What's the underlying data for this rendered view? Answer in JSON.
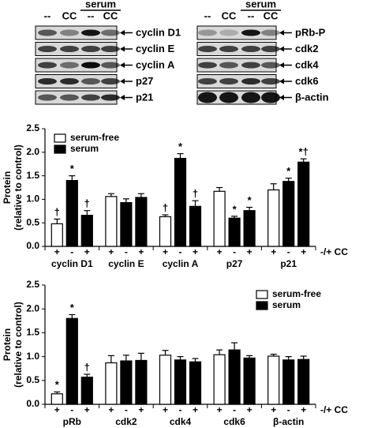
{
  "blots": {
    "left": {
      "lanes": [
        "--",
        "CC",
        "--",
        "CC"
      ],
      "group": "serum",
      "rows": [
        "cyclin D1",
        "cyclin E",
        "cyclin A",
        "p27",
        "p21"
      ]
    },
    "right": {
      "lanes": [
        "--",
        "CC",
        "--",
        "CC"
      ],
      "group": "serum",
      "rows": [
        "pRb-P",
        "cdk2",
        "cdk4",
        "cdk6",
        "β-actin"
      ]
    }
  },
  "chart_data": [
    {
      "type": "bar",
      "ylabel": [
        "Protein",
        "(relative to control)"
      ],
      "ylim": [
        0,
        2.5
      ],
      "yticks": [
        {
          "value": 0,
          "label": "0.0"
        },
        {
          "value": 0.5,
          "label": "0.5"
        },
        {
          "value": 1,
          "label": "1.0"
        },
        {
          "value": 1.5,
          "label": "1.5"
        },
        {
          "value": 2,
          "label": "2.0"
        },
        {
          "value": 2.5,
          "label": "2.5"
        }
      ],
      "categories": [
        "cyclin D1",
        "cyclin E",
        "cyclin A",
        "p27",
        "p21"
      ],
      "cc_labels": [
        "+",
        "-",
        "+"
      ],
      "cc_axis_label": "-/+ CC",
      "legend": "upper left",
      "series": [
        {
          "name": "serum-free",
          "color": "#ffffff",
          "values": [
            0.48,
            1.06,
            0.63,
            1.17,
            1.2
          ],
          "errors": [
            0.1,
            0.06,
            0.04,
            0.08,
            0.13
          ],
          "markers": [
            "†",
            null,
            "†",
            null,
            null
          ]
        },
        {
          "name": "serum",
          "color": "#000000",
          "values": [
            [
              1.4,
              0.66
            ],
            [
              0.93,
              1.04
            ],
            [
              1.87,
              0.85
            ],
            [
              0.6,
              0.76
            ],
            [
              1.38,
              1.79
            ]
          ],
          "errors": [
            [
              0.1,
              0.1
            ],
            [
              0.08,
              0.08
            ],
            [
              0.1,
              0.12
            ],
            [
              0.04,
              0.07
            ],
            [
              0.07,
              0.07
            ]
          ],
          "markers": [
            [
              "*",
              "†"
            ],
            [
              null,
              null
            ],
            [
              "*",
              "†"
            ],
            [
              "*",
              "*"
            ],
            [
              "*",
              "*†"
            ]
          ]
        }
      ]
    },
    {
      "type": "bar",
      "ylabel": [
        "Protein",
        "(relative to control)"
      ],
      "ylim": [
        0,
        2.5
      ],
      "yticks": [
        {
          "value": 0,
          "label": "0.0"
        },
        {
          "value": 0.5,
          "label": "0.5"
        },
        {
          "value": 1,
          "label": "1.0"
        },
        {
          "value": 1.5,
          "label": "1.5"
        },
        {
          "value": 2,
          "label": "2.0"
        },
        {
          "value": 2.5,
          "label": "2.5"
        }
      ],
      "categories": [
        "pRb",
        "cdk2",
        "cdk4",
        "cdk6",
        "β-actin"
      ],
      "cc_labels": [
        "+",
        "-",
        "+"
      ],
      "cc_axis_label": "-/+ CC",
      "legend": "upper right",
      "series": [
        {
          "name": "serum-free",
          "color": "#ffffff",
          "values": [
            0.22,
            0.87,
            1.03,
            1.04,
            1.01
          ],
          "errors": [
            0.04,
            0.15,
            0.1,
            0.1,
            0.04
          ],
          "markers": [
            "*",
            null,
            null,
            null,
            null
          ]
        },
        {
          "name": "serum",
          "color": "#000000",
          "values": [
            [
              1.8,
              0.57
            ],
            [
              0.91,
              0.92
            ],
            [
              0.93,
              0.89
            ],
            [
              1.14,
              0.97
            ],
            [
              0.93,
              0.94
            ]
          ],
          "errors": [
            [
              0.08,
              0.06
            ],
            [
              0.12,
              0.15
            ],
            [
              0.07,
              0.07
            ],
            [
              0.15,
              0.05
            ],
            [
              0.07,
              0.07
            ]
          ],
          "markers": [
            [
              "*",
              "†"
            ],
            [
              null,
              null
            ],
            [
              null,
              null
            ],
            [
              null,
              null
            ],
            [
              null,
              null
            ]
          ]
        }
      ]
    }
  ]
}
